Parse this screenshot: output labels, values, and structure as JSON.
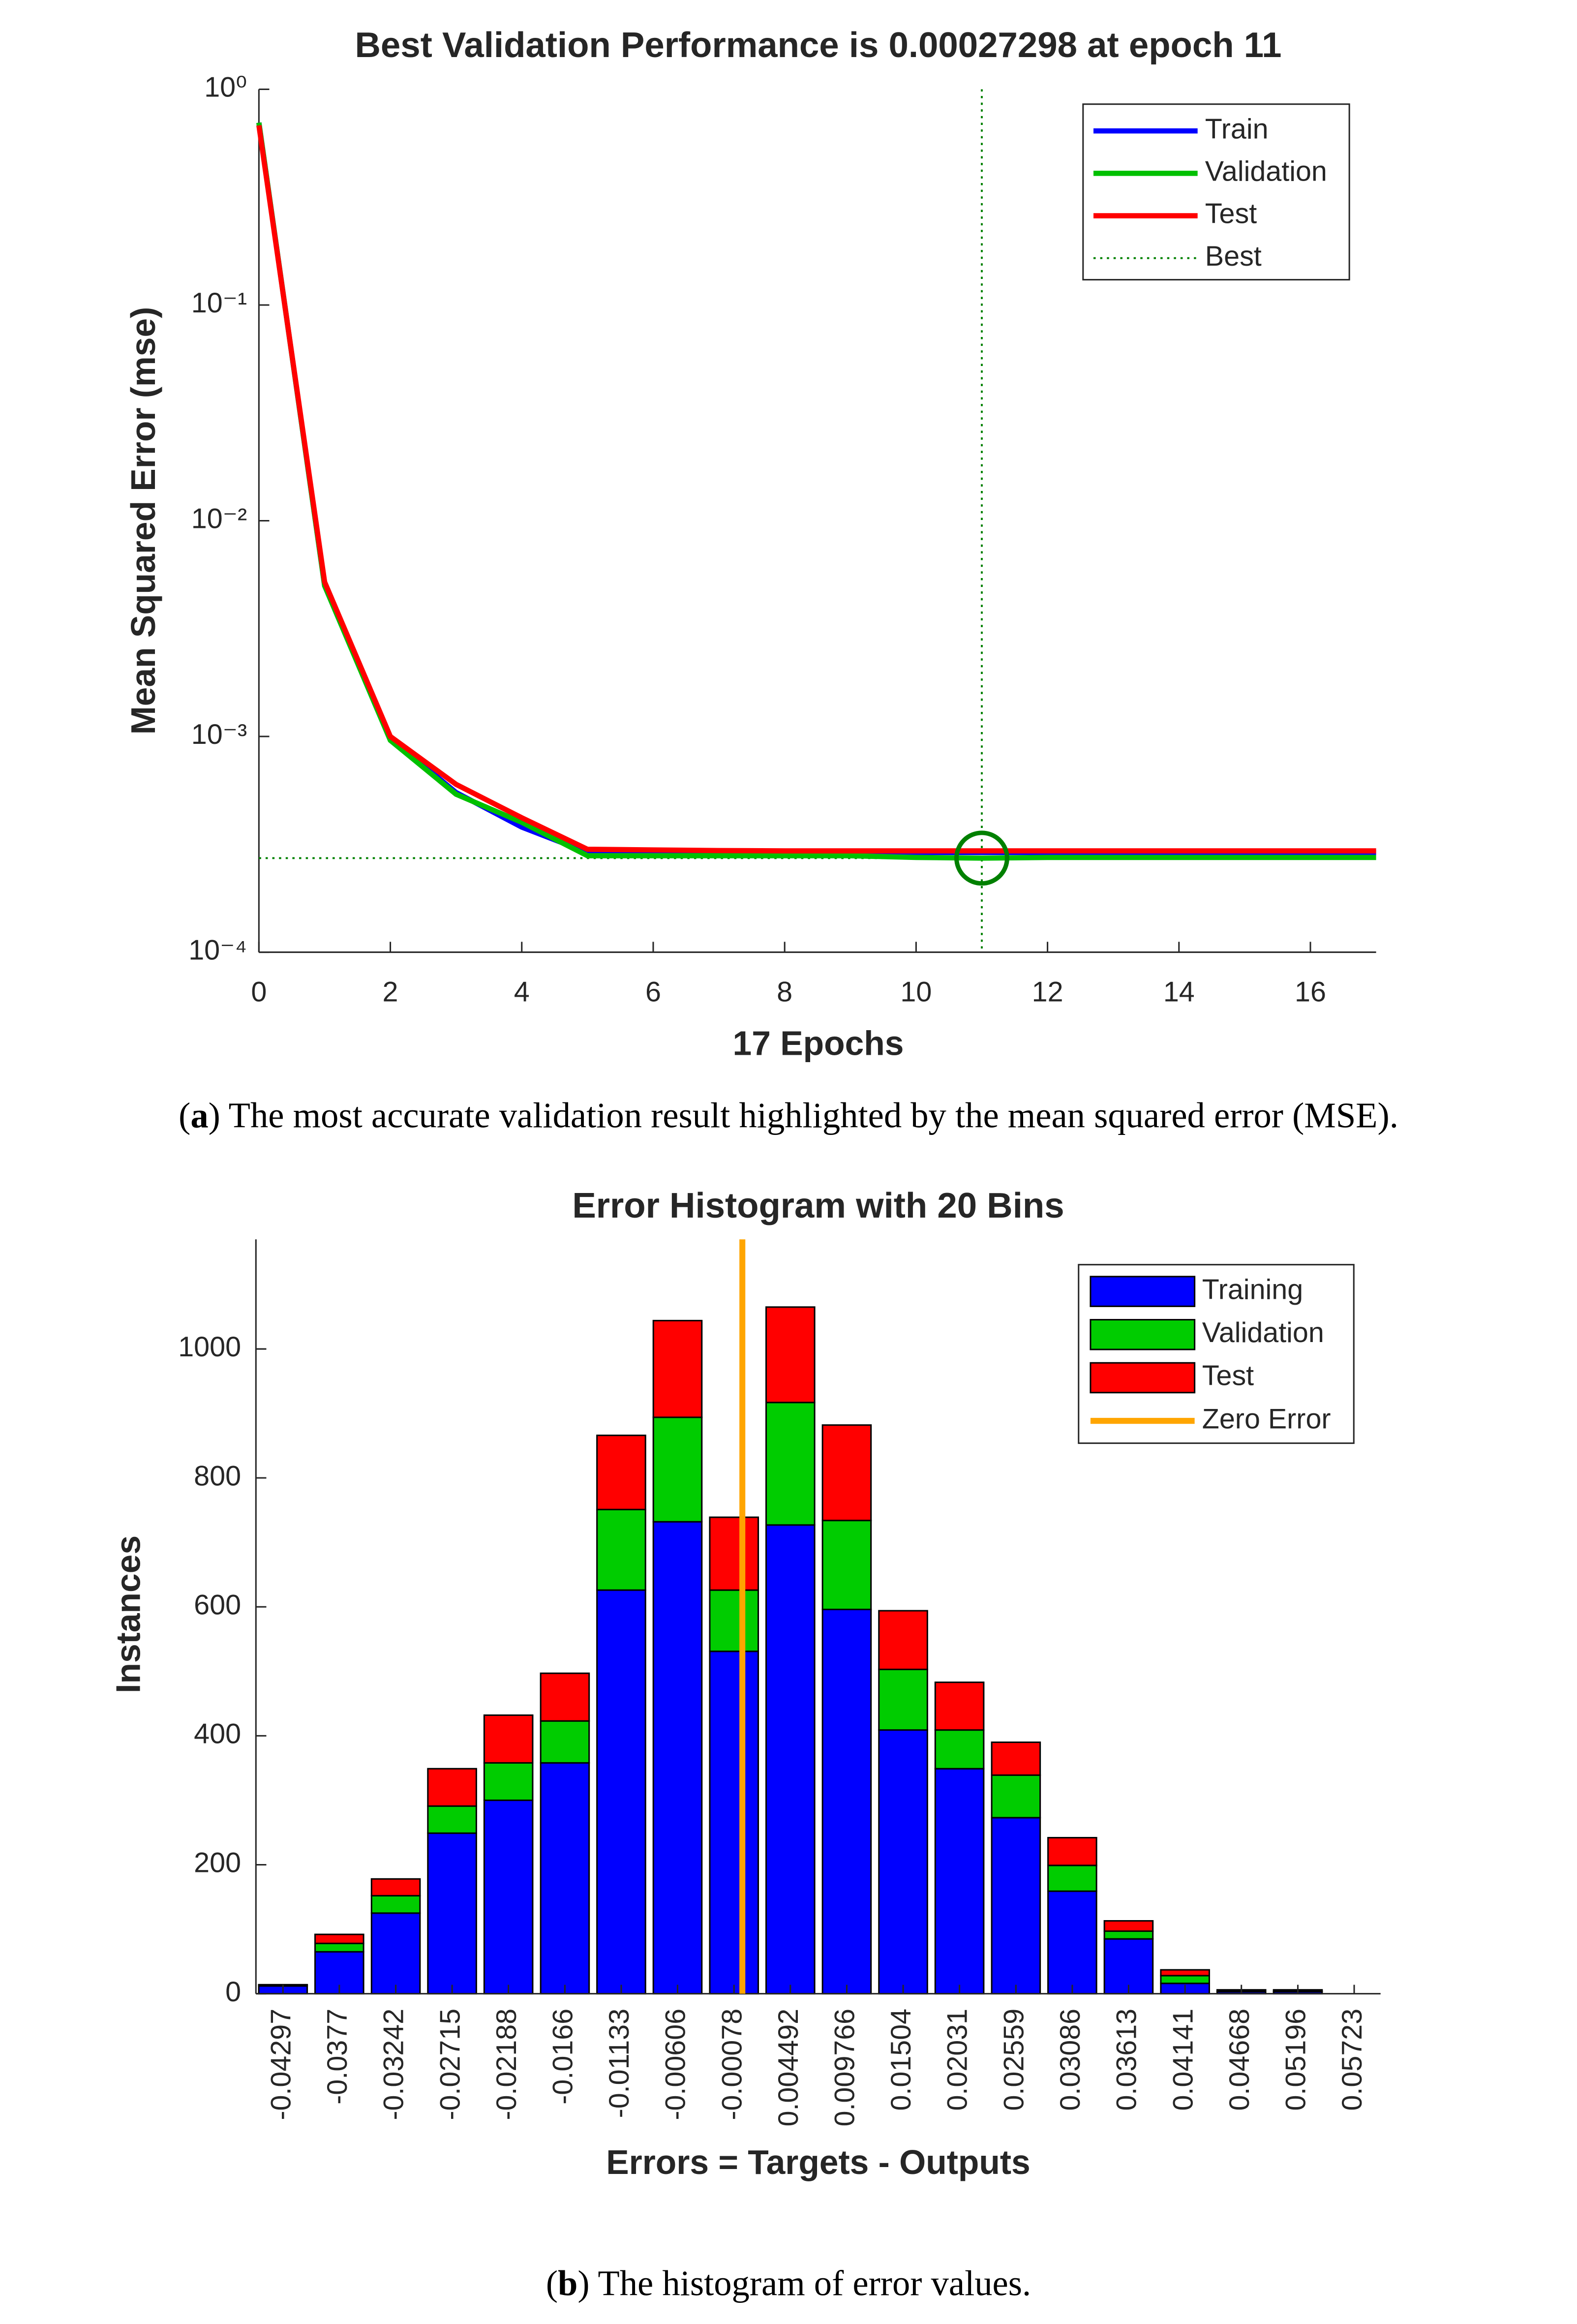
{
  "chart_data": [
    {
      "type": "line",
      "title": "Best Validation Performance is 0.00027298 at epoch 11",
      "x_label": "17 Epochs",
      "y_label": "Mean Squared Error  (mse)",
      "log_y": true,
      "x": [
        0,
        1,
        2,
        3,
        4,
        5,
        6,
        7,
        8,
        9,
        10,
        11,
        12,
        13,
        14,
        15,
        16,
        17
      ],
      "series": [
        {
          "name": "Train",
          "color": "#0000ff",
          "values": [
            0.7,
            0.005,
            0.00098,
            0.00055,
            0.00038,
            0.00029,
            0.00029,
            0.00029,
            0.00029,
            0.00029,
            0.00029,
            0.00029,
            0.00029,
            0.00029,
            0.00029,
            0.00029,
            0.00029,
            0.00029
          ]
        },
        {
          "name": "Validation",
          "color": "#00c000",
          "values": [
            0.7,
            0.005,
            0.00096,
            0.00054,
            0.0004,
            0.00028,
            0.00028,
            0.00028,
            0.00028,
            0.00028,
            0.000275,
            0.00027298,
            0.000275,
            0.000275,
            0.000275,
            0.000275,
            0.000275,
            0.000275
          ]
        },
        {
          "name": "Test",
          "color": "#ff0000",
          "values": [
            0.68,
            0.0052,
            0.001,
            0.0006,
            0.00042,
            0.0003,
            0.000298,
            0.000296,
            0.000295,
            0.000295,
            0.000295,
            0.000295,
            0.000295,
            0.000295,
            0.000295,
            0.000295,
            0.000295,
            0.000295
          ]
        }
      ],
      "best": {
        "name": "Best",
        "epoch": 11,
        "value": 0.00027298,
        "color": "#008000"
      },
      "xlim": [
        0,
        17
      ],
      "xticks": [
        0,
        2,
        4,
        6,
        8,
        10,
        12,
        14,
        16
      ],
      "ylim": [
        0.0001,
        1
      ],
      "yticks": [
        {
          "value": 0.0001,
          "label": "10⁻⁴"
        },
        {
          "value": 0.001,
          "label": "10⁻³"
        },
        {
          "value": 0.01,
          "label": "10⁻²"
        },
        {
          "value": 0.1,
          "label": "10⁻¹"
        },
        {
          "value": 1,
          "label": "10⁰"
        }
      ],
      "legend": "northeast",
      "caption": [
        "(",
        "a",
        ") The most accurate validation result highlighted by the mean squared error (MSE)."
      ]
    },
    {
      "type": "histogram",
      "title": "Error Histogram with 20 Bins",
      "x_label": "Errors = Targets - Outputs",
      "y_label": "Instances",
      "x": [
        -0.04297,
        -0.0377,
        -0.03242,
        -0.02715,
        -0.02188,
        -0.0166,
        -0.01133,
        -0.00606,
        -0.00078,
        0.004492,
        0.009766,
        0.01504,
        0.02031,
        0.02559,
        0.03086,
        0.03613,
        0.04141,
        0.04668,
        0.05196,
        0.05723
      ],
      "series": [
        {
          "name": "Training",
          "color": "#0000ff",
          "values": [
            12,
            65,
            125,
            249,
            300,
            358,
            626,
            732,
            531,
            727,
            596,
            409,
            349,
            273,
            159,
            85,
            16,
            3,
            3,
            0
          ]
        },
        {
          "name": "Validation",
          "color": "#00cc00",
          "values": [
            1,
            13,
            27,
            42,
            58,
            65,
            125,
            162,
            95,
            190,
            138,
            94,
            60,
            66,
            40,
            12,
            12,
            1,
            1,
            0
          ]
        },
        {
          "name": "Test",
          "color": "#ff0000",
          "values": [
            1,
            14,
            26,
            58,
            74,
            74,
            115,
            150,
            113,
            148,
            148,
            91,
            74,
            51,
            43,
            16,
            9,
            2,
            2,
            0
          ]
        }
      ],
      "zero_error": {
        "name": "Zero Error",
        "value": 0,
        "color": "#ffa500"
      },
      "xlim": [
        -0.0455,
        0.0597
      ],
      "xticks": [
        -0.04297,
        -0.0377,
        -0.03242,
        -0.02715,
        -0.02188,
        -0.0166,
        -0.01133,
        -0.00606,
        -0.00078,
        0.004492,
        0.009766,
        0.01504,
        0.02031,
        0.02559,
        0.03086,
        0.03613,
        0.04141,
        0.04668,
        0.05196,
        0.05723
      ],
      "ylim": [
        0,
        1170
      ],
      "yticks": [
        0,
        200,
        400,
        600,
        800,
        1000
      ],
      "legend": "northeast",
      "caption": [
        "(",
        "b",
        ") The histogram of error values."
      ]
    }
  ]
}
